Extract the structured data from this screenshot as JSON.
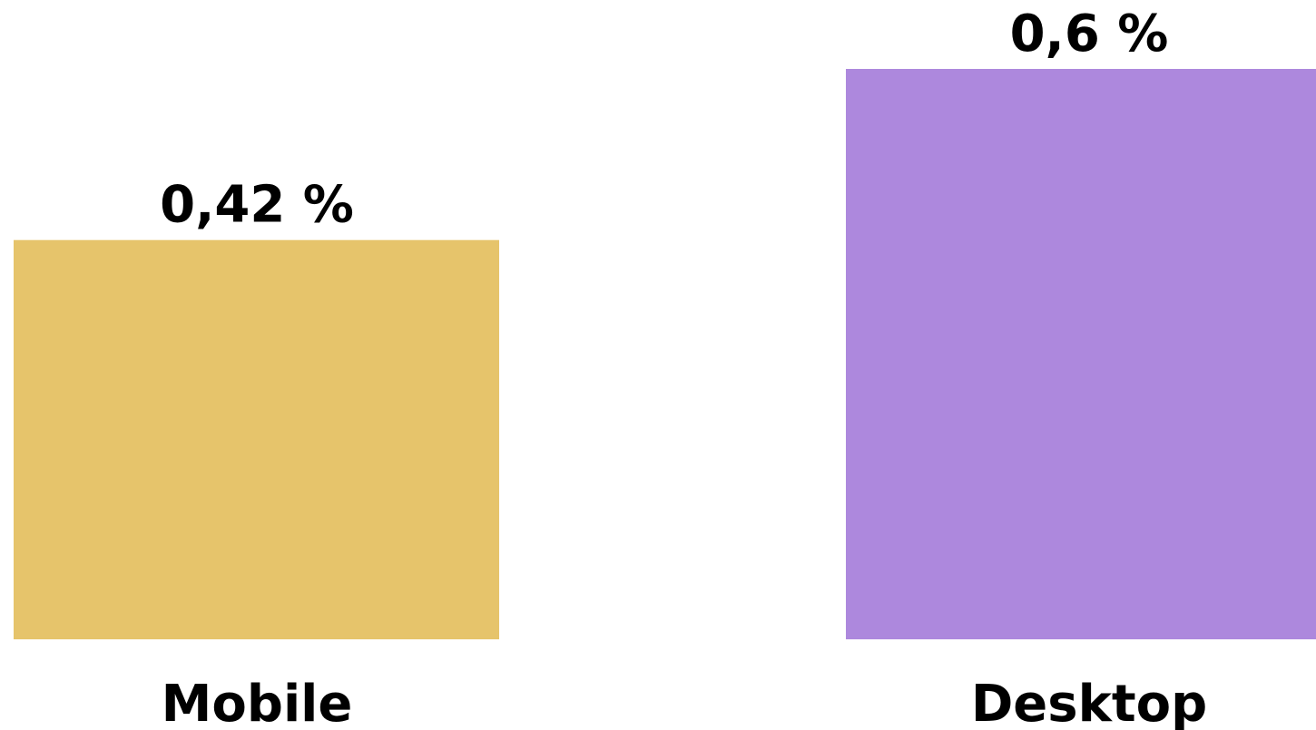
{
  "chart_data": {
    "type": "bar",
    "categories": [
      "Mobile",
      "Desktop"
    ],
    "values": [
      0.42,
      0.6
    ],
    "value_labels": [
      "0,42 %",
      "0,6 %"
    ],
    "colors": [
      "#E6C46B",
      "#AD88DD"
    ],
    "unit": "%",
    "ylim": [
      0,
      0.6
    ],
    "grid": false,
    "legend": "none",
    "axes_visible": false
  }
}
